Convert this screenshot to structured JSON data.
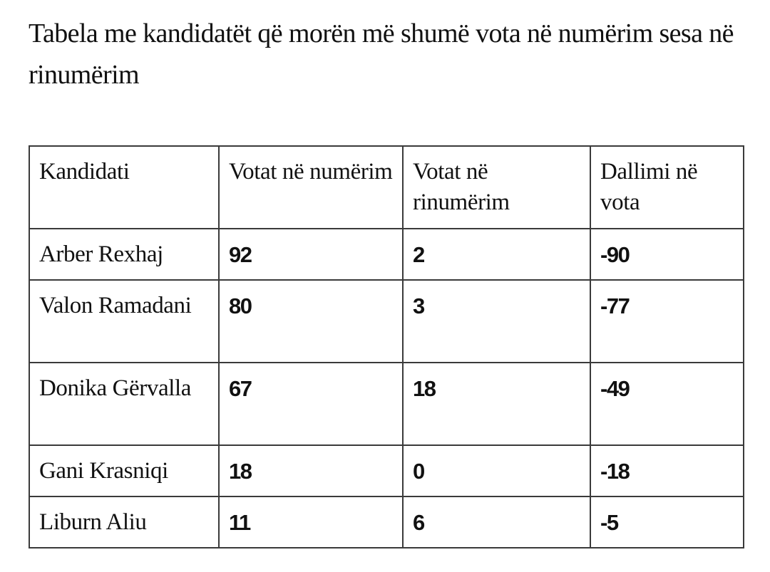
{
  "title": "Tabela me kandidatët që morën më shumë vota në numërim sesa në rinumërim",
  "table": {
    "headers": [
      "Kandidati",
      "Votat në numërim",
      "Votat në rinumërim",
      "Dallimi në vota"
    ],
    "rows": [
      [
        "Arber Rexhaj",
        "92",
        "2",
        "-90"
      ],
      [
        "Valon Ramadani",
        "80",
        "3",
        "-77"
      ],
      [
        "Donika Gërvalla",
        "67",
        "18",
        "-49"
      ],
      [
        "Gani Krasniqi",
        "18",
        "0",
        "-18"
      ],
      [
        "Liburn Aliu",
        "11",
        "6",
        "-5"
      ]
    ]
  }
}
